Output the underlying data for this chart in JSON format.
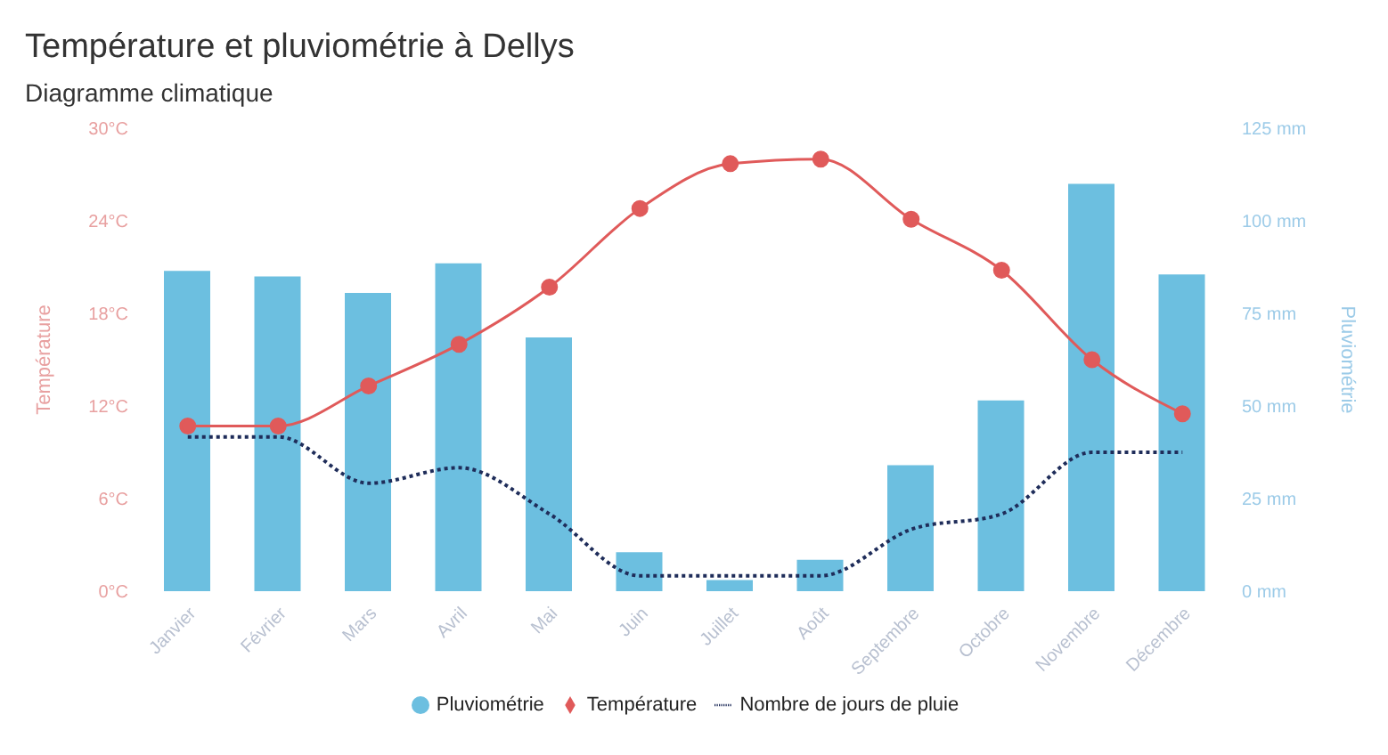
{
  "chart_data": {
    "type": "bar",
    "title": "Température et pluviométrie à Dellys",
    "subtitle": "Diagramme climatique",
    "ylabel": "Température",
    "y2label": "Pluviométrie",
    "categories": [
      "Janvier",
      "Février",
      "Mars",
      "Avril",
      "Mai",
      "Juin",
      "Juillet",
      "Août",
      "Septembre",
      "Octobre",
      "Novembre",
      "Décembre"
    ],
    "series": [
      {
        "name": "Pluviométrie",
        "axis": "y2",
        "color": "#6cbfe0",
        "values": [
          86.5,
          85,
          80.5,
          88.5,
          68.5,
          10.5,
          3,
          8.5,
          34,
          51.5,
          110,
          85.5
        ]
      },
      {
        "name": "Température",
        "type": "line",
        "axis": "y",
        "color": "#e05a5a",
        "marker": "circle",
        "line_style": "solid",
        "values": [
          10.7,
          10.7,
          13.3,
          16,
          19.7,
          24.8,
          27.7,
          28,
          24.1,
          20.8,
          15,
          11.5
        ]
      },
      {
        "name": "Nombre de jours de pluie",
        "type": "line",
        "axis": "y",
        "color": "#1f2d5a",
        "marker": "none",
        "line_style": "dotted",
        "values": [
          10,
          10,
          7,
          8,
          5,
          1,
          1,
          1,
          4,
          5,
          9,
          9
        ]
      }
    ],
    "ylim": [
      0,
      30
    ],
    "yticks": [
      {
        "value": 0,
        "label": "0°C"
      },
      {
        "value": 6,
        "label": "6°C"
      },
      {
        "value": 12,
        "label": "12°C"
      },
      {
        "value": 18,
        "label": "18°C"
      },
      {
        "value": 24,
        "label": "24°C"
      },
      {
        "value": 30,
        "label": "30°C"
      }
    ],
    "y2lim": [
      0,
      125
    ],
    "y2ticks": [
      {
        "value": 0,
        "label": "0 mm"
      },
      {
        "value": 25,
        "label": "25 mm"
      },
      {
        "value": 50,
        "label": "50 mm"
      },
      {
        "value": 75,
        "label": "75 mm"
      },
      {
        "value": 100,
        "label": "100 mm"
      },
      {
        "value": 125,
        "label": "125 mm"
      }
    ],
    "grid": false,
    "legend": "bottom"
  }
}
